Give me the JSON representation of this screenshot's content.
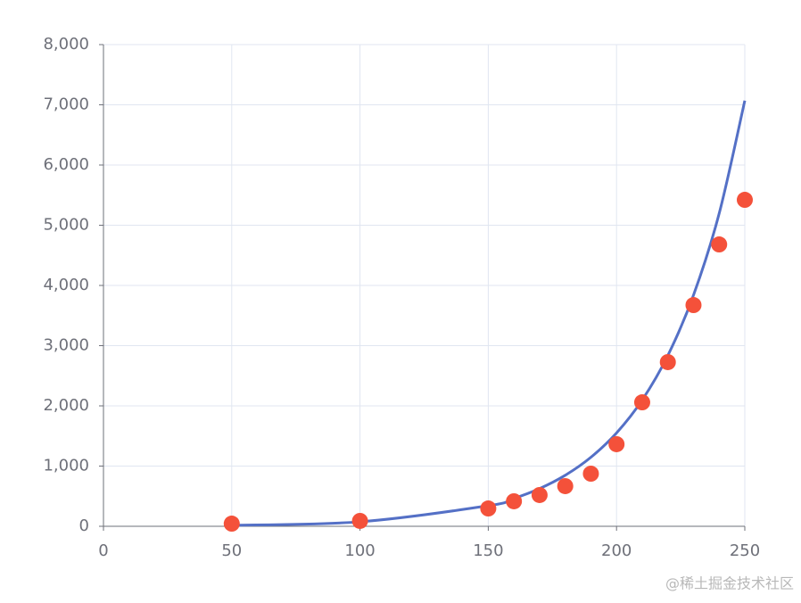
{
  "chart_data": {
    "type": "scatter",
    "xlim": [
      0,
      250
    ],
    "xticks": [
      0,
      50,
      100,
      150,
      200,
      250
    ],
    "ylim": [
      0,
      8000
    ],
    "yticks": [
      0,
      {
        "value": 1000,
        "label": "1,000"
      },
      {
        "value": 2000,
        "label": "2,000"
      },
      {
        "value": 3000,
        "label": "3,000"
      },
      {
        "value": 4000,
        "label": "4,000"
      },
      {
        "value": 5000,
        "label": "5,000"
      },
      {
        "value": 6000,
        "label": "6,000"
      },
      {
        "value": 7000,
        "label": "7,000"
      },
      {
        "value": 8000,
        "label": "8,000"
      }
    ],
    "grid": true,
    "series": [
      {
        "type": "scatter",
        "color": "#f4513a",
        "x": [
          50,
          100,
          150,
          160,
          170,
          180,
          190,
          200,
          210,
          220,
          230,
          240,
          250
        ],
        "values": [
          44,
          89,
          296,
          415,
          519,
          667,
          874,
          1363,
          2059,
          2726,
          3674,
          4681,
          5422
        ]
      },
      {
        "type": "line",
        "color": "#5470c6",
        "x": [
          50,
          100,
          150,
          160,
          170,
          180,
          190,
          200,
          210,
          220,
          230,
          240,
          250
        ],
        "values": [
          16,
          75,
          342,
          463,
          626,
          847,
          1146,
          1550,
          2097,
          2837,
          3839,
          5194,
          7070
        ]
      }
    ],
    "watermark": "@稀土掘金技术社区"
  }
}
